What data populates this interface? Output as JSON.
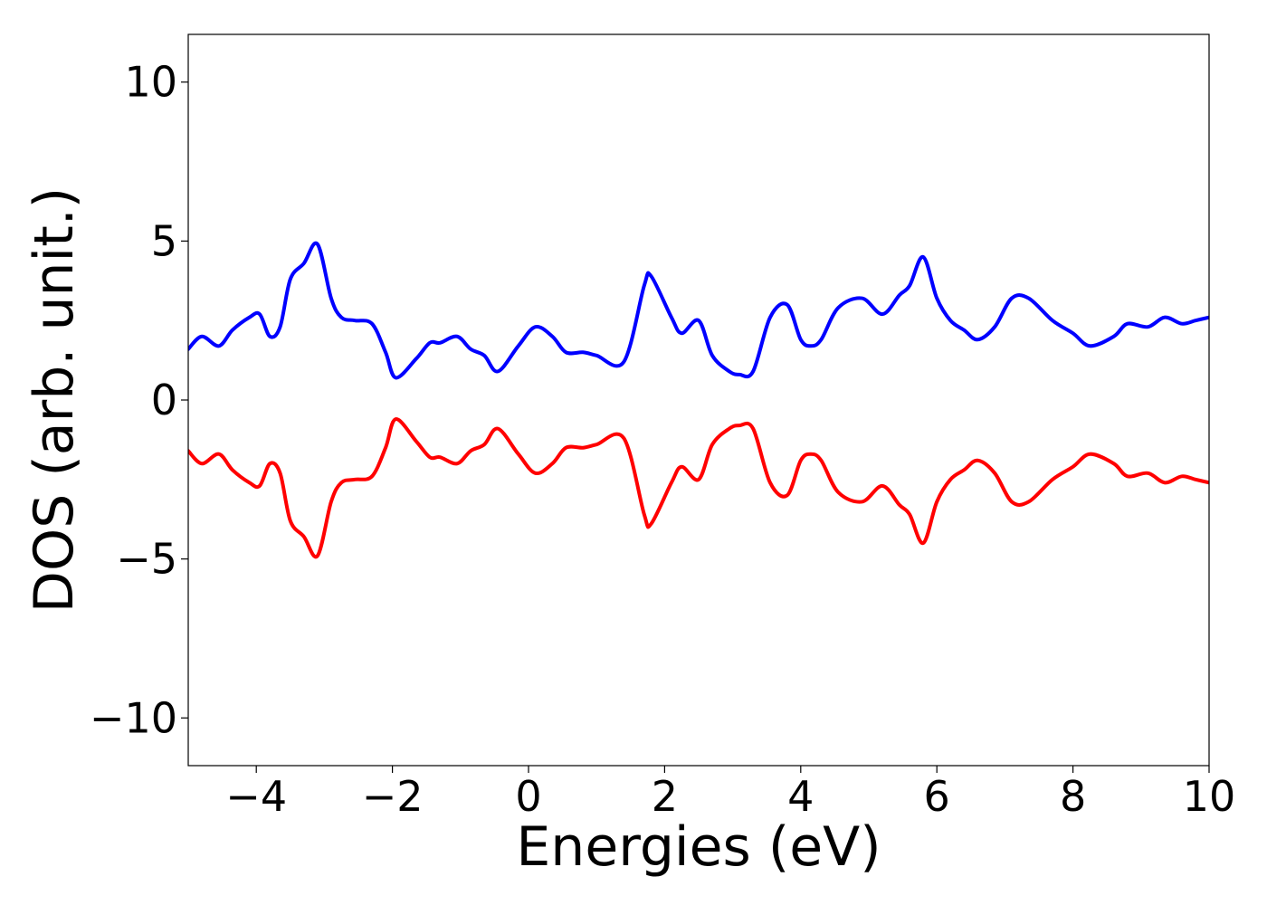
{
  "chart_data": {
    "type": "line",
    "title": "",
    "xlabel": "Energies (eV)",
    "ylabel": "DOS (arb. unit.)",
    "xlim": [
      -5,
      10
    ],
    "ylim": [
      -11.5,
      11.5
    ],
    "xticks": [
      -4,
      -2,
      0,
      2,
      4,
      6,
      8,
      10
    ],
    "xtick_labels": [
      "−4",
      "−2",
      "0",
      "2",
      "4",
      "6",
      "8",
      "10"
    ],
    "yticks": [
      -10,
      -5,
      0,
      5,
      10
    ],
    "ytick_labels": [
      "−10",
      "−5",
      "0",
      "5",
      "10"
    ],
    "grid": false,
    "legend": "none",
    "series": [
      {
        "color": "#0000ff",
        "x": [
          -5.0,
          -4.8,
          -4.55,
          -4.35,
          -4.1,
          -3.95,
          -3.8,
          -3.65,
          -3.5,
          -3.3,
          -3.1,
          -2.9,
          -2.75,
          -2.55,
          -2.3,
          -2.1,
          -1.95,
          -1.65,
          -1.45,
          -1.3,
          -1.05,
          -0.85,
          -0.65,
          -0.45,
          -0.15,
          0.1,
          0.35,
          0.55,
          0.8,
          1.0,
          1.4,
          1.7,
          1.8,
          2.1,
          2.25,
          2.5,
          2.7,
          2.95,
          3.1,
          3.3,
          3.55,
          3.8,
          4.0,
          4.15,
          4.3,
          4.55,
          4.9,
          5.2,
          5.45,
          5.6,
          5.8,
          6.0,
          6.2,
          6.4,
          6.6,
          6.85,
          7.1,
          7.35,
          7.7,
          8.0,
          8.25,
          8.6,
          8.8,
          9.1,
          9.35,
          9.6,
          9.8,
          10.0
        ],
        "y": [
          1.6,
          2.0,
          1.7,
          2.2,
          2.6,
          2.7,
          2.0,
          2.3,
          3.8,
          4.3,
          4.9,
          3.2,
          2.6,
          2.5,
          2.4,
          1.5,
          0.7,
          1.3,
          1.8,
          1.8,
          2.0,
          1.6,
          1.4,
          0.9,
          1.7,
          2.3,
          2.0,
          1.5,
          1.5,
          1.4,
          1.2,
          3.6,
          3.9,
          2.6,
          2.1,
          2.5,
          1.4,
          0.9,
          0.8,
          0.9,
          2.6,
          3.0,
          1.9,
          1.7,
          1.9,
          2.9,
          3.2,
          2.7,
          3.3,
          3.6,
          4.5,
          3.2,
          2.5,
          2.2,
          1.9,
          2.3,
          3.2,
          3.2,
          2.5,
          2.1,
          1.7,
          2.0,
          2.4,
          2.3,
          2.6,
          2.4,
          2.5,
          2.6
        ]
      },
      {
        "color": "#ff0000",
        "x": [
          -5.0,
          -4.8,
          -4.55,
          -4.35,
          -4.1,
          -3.95,
          -3.8,
          -3.65,
          -3.5,
          -3.3,
          -3.1,
          -2.9,
          -2.75,
          -2.55,
          -2.3,
          -2.1,
          -1.95,
          -1.65,
          -1.45,
          -1.3,
          -1.05,
          -0.85,
          -0.65,
          -0.45,
          -0.15,
          0.1,
          0.35,
          0.55,
          0.8,
          1.0,
          1.4,
          1.7,
          1.8,
          2.1,
          2.25,
          2.5,
          2.7,
          2.95,
          3.1,
          3.3,
          3.55,
          3.8,
          4.0,
          4.15,
          4.3,
          4.55,
          4.9,
          5.2,
          5.45,
          5.6,
          5.8,
          6.0,
          6.2,
          6.4,
          6.6,
          6.85,
          7.1,
          7.35,
          7.7,
          8.0,
          8.25,
          8.6,
          8.8,
          9.1,
          9.35,
          9.6,
          9.8,
          10.0
        ],
        "y": [
          -1.6,
          -2.0,
          -1.7,
          -2.2,
          -2.6,
          -2.7,
          -2.0,
          -2.3,
          -3.8,
          -4.3,
          -4.9,
          -3.2,
          -2.6,
          -2.5,
          -2.4,
          -1.5,
          -0.6,
          -1.3,
          -1.8,
          -1.8,
          -2.0,
          -1.6,
          -1.4,
          -0.9,
          -1.7,
          -2.3,
          -2.0,
          -1.5,
          -1.5,
          -1.4,
          -1.2,
          -3.6,
          -3.9,
          -2.6,
          -2.1,
          -2.5,
          -1.4,
          -0.9,
          -0.8,
          -0.9,
          -2.6,
          -3.0,
          -1.9,
          -1.7,
          -1.9,
          -2.9,
          -3.2,
          -2.7,
          -3.3,
          -3.6,
          -4.5,
          -3.2,
          -2.5,
          -2.2,
          -1.9,
          -2.3,
          -3.2,
          -3.2,
          -2.5,
          -2.1,
          -1.7,
          -2.0,
          -2.4,
          -2.3,
          -2.6,
          -2.4,
          -2.5,
          -2.6
        ]
      }
    ]
  }
}
